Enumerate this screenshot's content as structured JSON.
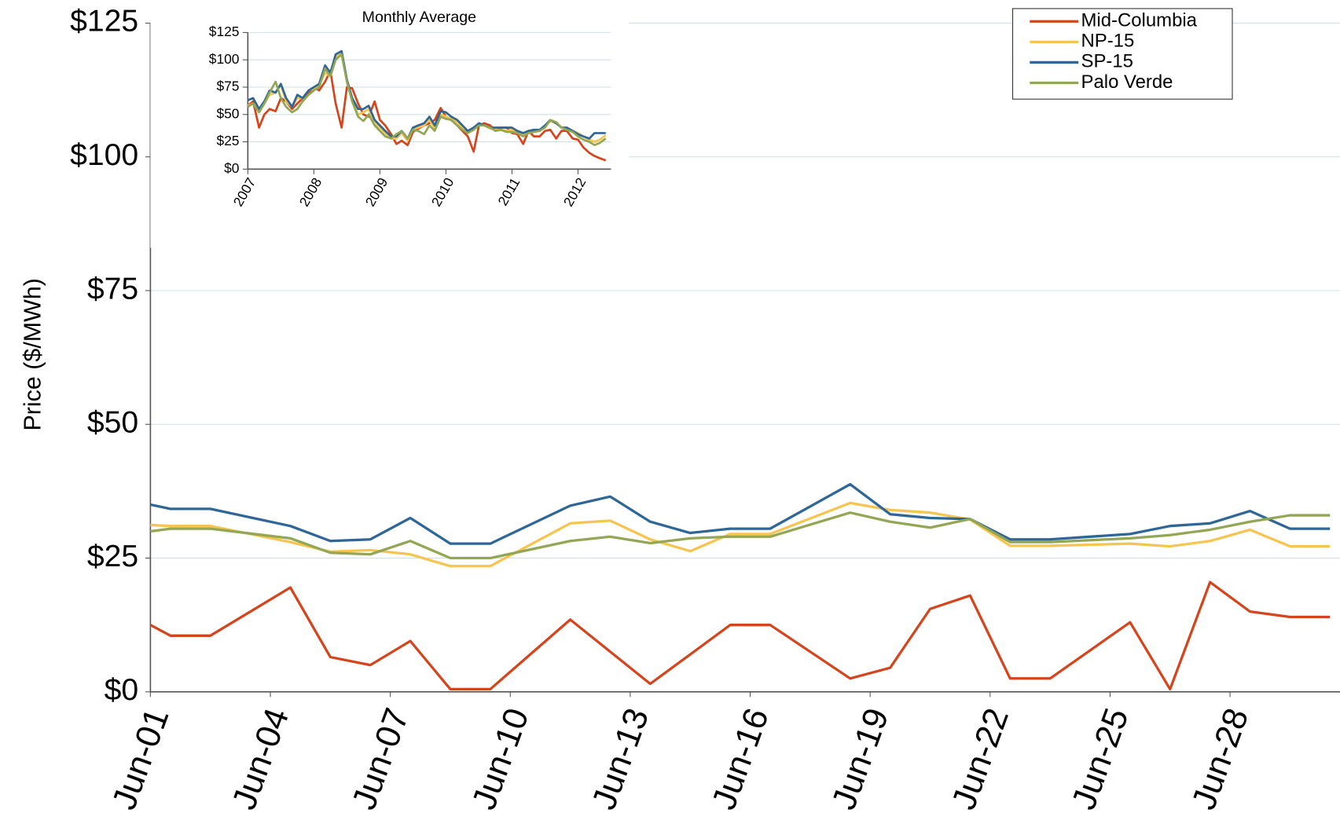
{
  "chart_data": [
    {
      "type": "line",
      "y_label": "Price ($/MWh)",
      "x": [
        1,
        1.5,
        2.5,
        4.5,
        5.5,
        6.5,
        7.5,
        8.5,
        9.5,
        11.5,
        12.5,
        13.5,
        14.5,
        15.5,
        16.5,
        18.5,
        19.5,
        20.5,
        21.5,
        22.5,
        23.5,
        25.5,
        26.5,
        27.5,
        28.5,
        29.5,
        30.5
      ],
      "series": [
        {
          "name": "Mid-Columbia",
          "color": "#d4451d",
          "values": [
            12.5,
            10.5,
            10.5,
            19.5,
            6.5,
            5,
            9.5,
            0.5,
            0.5,
            13.5,
            7.5,
            1.5,
            7,
            12.5,
            12.5,
            2.5,
            4.5,
            15.5,
            18,
            2.5,
            2.5,
            13,
            0.5,
            20.5,
            15,
            14,
            14
          ]
        },
        {
          "name": "NP-15",
          "color": "#f5c54f",
          "values": [
            31.2,
            31,
            31,
            28,
            26.2,
            26.5,
            25.7,
            23.5,
            23.5,
            31.5,
            32,
            28.5,
            26.3,
            29.5,
            29.5,
            35.3,
            34,
            33.5,
            32.2,
            27.3,
            27.3,
            27.7,
            27.2,
            28.2,
            30.3,
            27.2,
            27.2
          ]
        },
        {
          "name": "SP-15",
          "color": "#2e6797",
          "values": [
            35,
            34.2,
            34.2,
            31,
            28.2,
            28.5,
            32.5,
            27.7,
            27.7,
            34.8,
            36.5,
            31.8,
            29.7,
            30.5,
            30.5,
            38.8,
            33.2,
            32.5,
            32.3,
            28.5,
            28.5,
            29.5,
            31,
            31.5,
            33.8,
            30.5,
            30.5
          ]
        },
        {
          "name": "Palo Verde",
          "color": "#92a653",
          "values": [
            30,
            30.5,
            30.5,
            28.7,
            26,
            25.7,
            28.2,
            25,
            25,
            28.2,
            29,
            27.8,
            28.7,
            29,
            29,
            33.5,
            31.8,
            30.7,
            32.3,
            28,
            28,
            28.7,
            29.3,
            30.3,
            31.8,
            33,
            33
          ]
        }
      ],
      "xlim": [
        1,
        30.75
      ],
      "xticks": [
        {
          "value": 1,
          "label": "Jun-01"
        },
        {
          "value": 4,
          "label": "Jun-04"
        },
        {
          "value": 7,
          "label": "Jun-07"
        },
        {
          "value": 10,
          "label": "Jun-10"
        },
        {
          "value": 13,
          "label": "Jun-13"
        },
        {
          "value": 16,
          "label": "Jun-16"
        },
        {
          "value": 19,
          "label": "Jun-19"
        },
        {
          "value": 22,
          "label": "Jun-22"
        },
        {
          "value": 25,
          "label": "Jun-25"
        },
        {
          "value": 28,
          "label": "Jun-28"
        }
      ],
      "ylim": [
        0,
        125
      ],
      "yticks": [
        {
          "value": 0,
          "label": "$0"
        },
        {
          "value": 25,
          "label": "$25"
        },
        {
          "value": 50,
          "label": "$50"
        },
        {
          "value": 75,
          "label": "$75"
        },
        {
          "value": 100,
          "label": "$100"
        },
        {
          "value": 125,
          "label": "$125"
        }
      ],
      "grid": true,
      "legend": "upper right"
    },
    {
      "type": "line",
      "title": "Monthly Average",
      "x": [
        2007,
        2007.08,
        2007.17,
        2007.25,
        2007.33,
        2007.42,
        2007.5,
        2007.58,
        2007.67,
        2007.75,
        2007.83,
        2007.92,
        2008,
        2008.08,
        2008.17,
        2008.25,
        2008.33,
        2008.42,
        2008.5,
        2008.58,
        2008.67,
        2008.75,
        2008.83,
        2008.92,
        2009,
        2009.08,
        2009.17,
        2009.25,
        2009.33,
        2009.42,
        2009.5,
        2009.58,
        2009.67,
        2009.75,
        2009.83,
        2009.92,
        2010,
        2010.08,
        2010.17,
        2010.25,
        2010.33,
        2010.42,
        2010.5,
        2010.58,
        2010.67,
        2010.75,
        2010.83,
        2010.92,
        2011,
        2011.08,
        2011.17,
        2011.25,
        2011.33,
        2011.42,
        2011.5,
        2011.58,
        2011.67,
        2011.75,
        2011.83,
        2011.92,
        2012,
        2012.08,
        2012.17,
        2012.25,
        2012.33,
        2012.42
      ],
      "series": [
        {
          "color": "#d4451d",
          "values": [
            58,
            62,
            38,
            50,
            55,
            53,
            65,
            62,
            55,
            60,
            65,
            70,
            75,
            72,
            80,
            90,
            60,
            38,
            75,
            74,
            60,
            50,
            48,
            62,
            45,
            40,
            32,
            23,
            26,
            22,
            34,
            37,
            40,
            42,
            45,
            56,
            48,
            45,
            40,
            35,
            30,
            16,
            40,
            42,
            40,
            35,
            38,
            38,
            33,
            32,
            23,
            35,
            30,
            30,
            35,
            36,
            28,
            35,
            35,
            28,
            27,
            20,
            15,
            12,
            10,
            8
          ]
        },
        {
          "color": "#f5c54f",
          "values": [
            58,
            60,
            52,
            60,
            68,
            70,
            77,
            62,
            57,
            65,
            65,
            72,
            74,
            77,
            88,
            85,
            102,
            107,
            80,
            62,
            50,
            52,
            55,
            42,
            38,
            33,
            28,
            28,
            33,
            26,
            37,
            38,
            40,
            45,
            37,
            50,
            48,
            46,
            43,
            38,
            35,
            37,
            41,
            40,
            37,
            36,
            36,
            35,
            36,
            34,
            32,
            34,
            35,
            35,
            39,
            44,
            42,
            38,
            37,
            35,
            33,
            30,
            27,
            25,
            27,
            31
          ]
        },
        {
          "color": "#2e6797",
          "values": [
            63,
            65,
            55,
            62,
            72,
            70,
            78,
            65,
            57,
            68,
            65,
            72,
            75,
            78,
            95,
            88,
            105,
            108,
            82,
            65,
            55,
            55,
            58,
            45,
            40,
            35,
            30,
            30,
            35,
            28,
            38,
            40,
            42,
            48,
            40,
            53,
            52,
            48,
            45,
            40,
            35,
            38,
            42,
            40,
            38,
            38,
            38,
            38,
            38,
            35,
            33,
            35,
            36,
            36,
            40,
            45,
            42,
            38,
            38,
            35,
            32,
            30,
            28,
            33,
            33,
            33
          ]
        },
        {
          "color": "#92a653",
          "values": [
            57,
            60,
            52,
            60,
            70,
            80,
            65,
            57,
            52,
            55,
            62,
            68,
            72,
            75,
            92,
            85,
            100,
            105,
            80,
            62,
            48,
            44,
            50,
            40,
            35,
            30,
            28,
            32,
            35,
            28,
            36,
            35,
            32,
            40,
            35,
            48,
            46,
            45,
            40,
            36,
            33,
            36,
            40,
            40,
            38,
            35,
            36,
            34,
            34,
            33,
            30,
            33,
            34,
            35,
            38,
            45,
            43,
            38,
            36,
            34,
            30,
            27,
            25,
            22,
            24,
            28
          ]
        }
      ],
      "xlim": [
        2007,
        2012.5
      ],
      "xticks": [
        2007,
        2008,
        2009,
        2010,
        2011,
        2012
      ],
      "ylim": [
        0,
        125
      ],
      "yticks": [
        {
          "value": 0,
          "label": "$0"
        },
        {
          "value": 25,
          "label": "$25"
        },
        {
          "value": 50,
          "label": "$50"
        },
        {
          "value": 75,
          "label": "$75"
        },
        {
          "value": 100,
          "label": "$100"
        },
        {
          "value": 125,
          "label": "$125"
        }
      ],
      "grid": true
    }
  ]
}
